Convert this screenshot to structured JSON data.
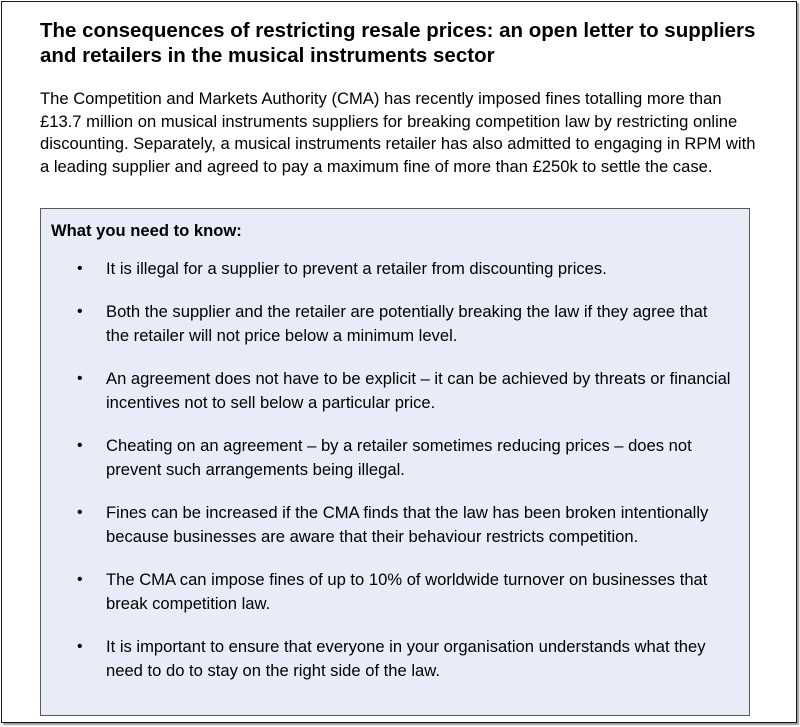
{
  "title": "The consequences of restricting resale prices: an open letter to suppliers and retailers in the musical instruments sector",
  "intro": "The Competition and Markets Authority (CMA) has recently imposed fines totalling more than £13.7 million on musical instruments suppliers for breaking competition law by restricting online discounting. Separately, a musical instruments retailer has also admitted to engaging in RPM with a leading supplier and agreed to pay a maximum fine of more than £250k to settle the case.",
  "box": {
    "heading": "What you need to know:",
    "bullet_glyph": "•",
    "items": [
      "It is illegal for a supplier to prevent a retailer from discounting prices.",
      "Both the supplier and the retailer are potentially breaking the law if they agree that the retailer will not price below a minimum level.",
      "An agreement does not have to be explicit – it can be achieved by threats or financial incentives not to sell below a particular price.",
      "Cheating on an agreement – by a retailer sometimes reducing prices – does not prevent such arrangements being illegal.",
      "Fines can be increased if the CMA finds that the law has been broken intentionally because businesses are aware that their behaviour restricts competition.",
      "The CMA can impose fines of up to 10% of worldwide turnover on businesses that break competition law.",
      "It is important to ensure that everyone in your organisation understands what they need to do to stay on the right side of the law."
    ]
  },
  "colors": {
    "box_background": "#e8ecf8",
    "box_border": "#5a5a5a",
    "text": "#000000"
  }
}
